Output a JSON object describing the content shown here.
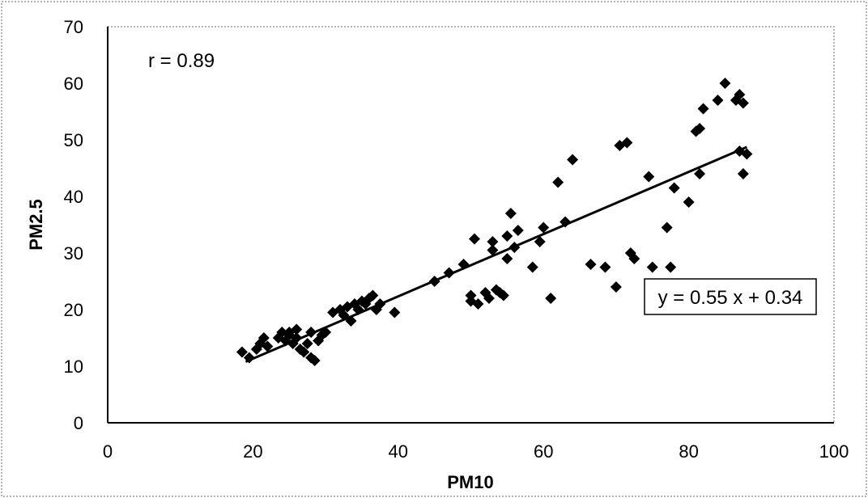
{
  "chart_data": {
    "type": "scatter",
    "title": "",
    "xlabel": "PM10",
    "ylabel": "PM2.5",
    "xlim": [
      0,
      100
    ],
    "ylim": [
      0,
      70
    ],
    "xticks": [
      "0",
      "20",
      "40",
      "60",
      "80",
      "100"
    ],
    "yticks": [
      "0",
      "10",
      "20",
      "30",
      "40",
      "50",
      "60",
      "70"
    ],
    "grid": false,
    "legend": "none",
    "marker": "diamond",
    "marker_color": "#000000",
    "annotations": {
      "correlation": "r = 0.89",
      "equation": "y = 0.55 x + 0.34"
    },
    "trendline": {
      "slope": 0.55,
      "intercept": 0.34,
      "x_range": [
        19,
        88
      ]
    },
    "series": [
      {
        "points": [
          [
            18.5,
            12.5
          ],
          [
            19.5,
            11.5
          ],
          [
            20.5,
            13
          ],
          [
            21,
            14
          ],
          [
            21.5,
            15
          ],
          [
            22,
            13.5
          ],
          [
            23.5,
            15
          ],
          [
            24,
            16
          ],
          [
            24.5,
            14.5
          ],
          [
            25,
            15.5
          ],
          [
            25,
            16
          ],
          [
            25.5,
            14
          ],
          [
            26,
            15
          ],
          [
            26,
            16.5
          ],
          [
            26.5,
            13
          ],
          [
            27,
            12.5
          ],
          [
            27.5,
            14
          ],
          [
            28,
            11.5
          ],
          [
            28.5,
            11
          ],
          [
            28,
            16
          ],
          [
            29,
            14.5
          ],
          [
            29.5,
            15.5
          ],
          [
            30,
            16
          ],
          [
            31,
            19.5
          ],
          [
            32,
            20
          ],
          [
            32.5,
            19
          ],
          [
            33,
            20.5
          ],
          [
            33.5,
            18
          ],
          [
            34,
            21
          ],
          [
            34.5,
            20
          ],
          [
            35,
            21.5
          ],
          [
            35.5,
            21
          ],
          [
            36,
            22
          ],
          [
            36.5,
            22.5
          ],
          [
            37,
            20
          ],
          [
            37.5,
            21
          ],
          [
            39.5,
            19.5
          ],
          [
            45,
            25
          ],
          [
            47,
            26.5
          ],
          [
            49,
            28
          ],
          [
            50,
            21.5
          ],
          [
            50,
            22.5
          ],
          [
            50.5,
            32.5
          ],
          [
            51,
            21
          ],
          [
            52,
            23
          ],
          [
            52.5,
            22
          ],
          [
            53,
            32
          ],
          [
            53,
            30.5
          ],
          [
            53.5,
            23.5
          ],
          [
            54,
            23
          ],
          [
            54.5,
            22.5
          ],
          [
            55,
            29
          ],
          [
            55,
            33
          ],
          [
            55.5,
            37
          ],
          [
            56,
            31
          ],
          [
            56.5,
            34
          ],
          [
            58.5,
            27.5
          ],
          [
            59.5,
            32
          ],
          [
            60,
            34.5
          ],
          [
            61,
            22
          ],
          [
            62,
            42.5
          ],
          [
            63,
            35.5
          ],
          [
            64,
            46.5
          ],
          [
            66.5,
            28
          ],
          [
            68.5,
            27.5
          ],
          [
            70,
            24
          ],
          [
            70.5,
            49
          ],
          [
            71.5,
            49.5
          ],
          [
            72,
            30
          ],
          [
            72.5,
            29
          ],
          [
            74.5,
            43.5
          ],
          [
            75,
            27.5
          ],
          [
            77,
            34.5
          ],
          [
            77.5,
            27.5
          ],
          [
            78,
            41.5
          ],
          [
            80,
            39
          ],
          [
            81,
            51.5
          ],
          [
            81.5,
            52
          ],
          [
            81.5,
            44
          ],
          [
            82,
            55.5
          ],
          [
            84,
            57
          ],
          [
            85,
            60
          ],
          [
            86.5,
            57
          ],
          [
            87,
            58
          ],
          [
            87.5,
            56.5
          ],
          [
            87,
            48
          ],
          [
            87.5,
            44
          ],
          [
            88,
            47.5
          ]
        ]
      }
    ]
  }
}
